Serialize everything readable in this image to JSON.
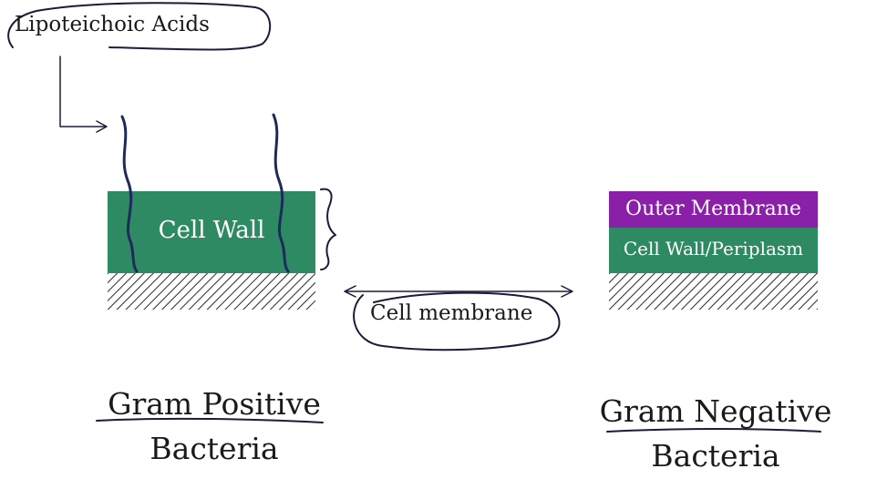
{
  "annotations": {
    "lipoteichoic_label": "Lipoteichoic  Acids",
    "cell_membrane_label": "Cell membrane"
  },
  "gram_positive": {
    "cell_wall_label": "Cell Wall",
    "title_line1": "Gram Positive",
    "title_line2": "Bacteria"
  },
  "gram_negative": {
    "outer_membrane_label": "Outer Membrane",
    "cell_wall_label": "Cell Wall/Periplasm",
    "title_line1": "Gram Negative",
    "title_line2": "Bacteria"
  },
  "colors": {
    "cell_wall": "#2e8a63",
    "outer_membrane": "#8a1fa8",
    "ink": "#1a1a1a"
  }
}
